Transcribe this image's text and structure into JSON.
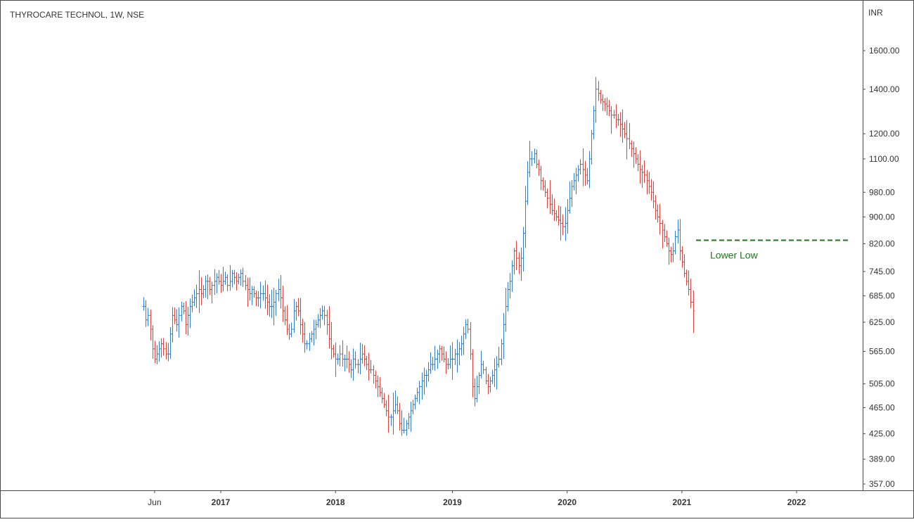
{
  "header": {
    "title": "THYROCARE TECHNOL, 1W, NSE"
  },
  "price_axis": {
    "currency": "INR"
  },
  "annotation": {
    "label": "Lower Low",
    "level": 830,
    "color": "#1a7a1a"
  },
  "colors": {
    "up": "#2f7fd1",
    "down": "#e0413a",
    "axis": "#6b6b6b"
  },
  "chart_data": {
    "type": "ohlc",
    "title": "THYROCARE TECHNOL, 1W, NSE",
    "ylabel": "INR",
    "yscale": "log",
    "ylim": [
      340,
      1800
    ],
    "xlim": [
      "2016-04-11",
      "2022-08-22"
    ],
    "y_ticks": [
      1600,
      1400,
      1200,
      1100,
      980,
      900,
      820,
      745,
      685,
      625,
      565,
      505,
      465,
      425,
      389,
      357
    ],
    "y_tick_labels": [
      "1600.00",
      "1400.00",
      "1200.00",
      "1100.00",
      "980.00",
      "900.00",
      "820.00",
      "745.00",
      "685.00",
      "625.00",
      "565.00",
      "505.00",
      "465.00",
      "425.00",
      "389.00",
      "357.00"
    ],
    "x_ticks": [
      {
        "label": "Jun",
        "date": "2016-06-06"
      },
      {
        "label": "2017",
        "date": "2017-01-02"
      },
      {
        "label": "2018",
        "date": "2018-01-01"
      },
      {
        "label": "2019",
        "date": "2019-01-07"
      },
      {
        "label": "2020",
        "date": "2020-01-06"
      },
      {
        "label": "2021",
        "date": "2021-01-04"
      },
      {
        "label": "2022",
        "date": "2022-01-03"
      }
    ],
    "start_date": "2016-05-02",
    "interval": "1W",
    "closes": [
      660,
      630,
      640,
      610,
      570,
      550,
      560,
      570,
      580,
      570,
      560,
      560,
      600,
      640,
      630,
      620,
      640,
      660,
      650,
      620,
      640,
      660,
      670,
      680,
      690,
      700,
      690,
      700,
      720,
      720,
      700,
      710,
      720,
      730,
      720,
      710,
      720,
      730,
      710,
      720,
      740,
      730,
      720,
      730,
      740,
      720,
      710,
      700,
      690,
      700,
      690,
      680,
      680,
      690,
      690,
      680,
      670,
      660,
      660,
      670,
      690,
      700,
      680,
      650,
      630,
      610,
      600,
      610,
      650,
      660,
      650,
      620,
      600,
      580,
      580,
      590,
      600,
      610,
      620,
      630,
      640,
      650,
      640,
      620,
      590,
      570,
      560,
      550,
      550,
      560,
      550,
      550,
      550,
      540,
      530,
      550,
      540,
      540,
      550,
      560,
      550,
      540,
      530,
      530,
      520,
      510,
      500,
      490,
      480,
      470,
      460,
      450,
      450,
      460,
      470,
      460,
      440,
      430,
      430,
      440,
      450,
      460,
      470,
      480,
      490,
      500,
      510,
      520,
      520,
      530,
      540,
      540,
      550,
      560,
      570,
      560,
      550,
      540,
      540,
      550,
      550,
      560,
      560,
      570,
      580,
      600,
      620,
      610,
      560,
      500,
      480,
      500,
      520,
      540,
      530,
      510,
      500,
      510,
      520,
      530,
      540,
      550,
      580,
      620,
      660,
      700,
      720,
      760,
      800,
      780,
      760,
      780,
      850,
      950,
      1050,
      1100,
      1100,
      1120,
      1080,
      1060,
      1020,
      1000,
      980,
      960,
      940,
      920,
      910,
      900,
      890,
      880,
      870,
      880,
      920,
      960,
      1000,
      1020,
      1040,
      1060,
      1080,
      1060,
      1040,
      1020,
      1100,
      1200,
      1300,
      1400,
      1380,
      1350,
      1340,
      1330,
      1320,
      1300,
      1280,
      1280,
      1260,
      1260,
      1240,
      1220,
      1200,
      1180,
      1160,
      1140,
      1120,
      1100,
      1080,
      1060,
      1050,
      1040,
      1020,
      1000,
      980,
      950,
      920,
      900,
      880,
      860,
      840,
      820,
      800,
      790,
      800,
      840,
      860,
      800,
      770,
      740,
      720,
      700,
      670,
      650
    ]
  }
}
